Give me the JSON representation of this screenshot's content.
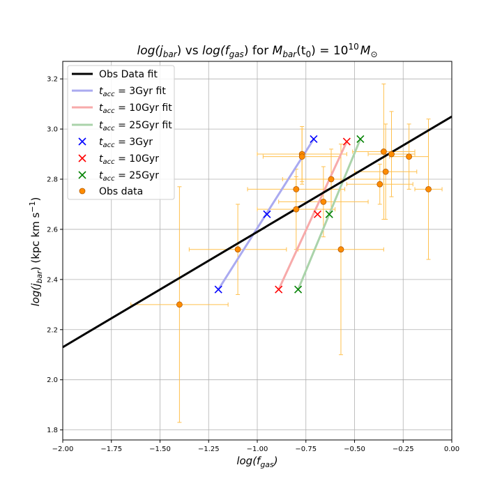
{
  "chart_data": {
    "type": "scatter",
    "title": "log(j_bar) vs log(f_gas) for M_bar(t0) = 10^10 M_sun",
    "title_parts": {
      "lhs": "log(j",
      "lhs_sub": "bar",
      "mid": ") vs ",
      "rhs": "log(f",
      "rhs_sub": "gas",
      "for": ") for ",
      "m": "M",
      "m_sub": "bar",
      "m_arg": "(t",
      "t_sub": "0",
      "eq": ") = 10",
      "exp": "10",
      "msun": "M",
      "msun_sub": "⊙"
    },
    "xlabel": "log(f_gas)",
    "xlabel_parts": {
      "main": "log(f",
      "sub": "gas",
      "end": ")"
    },
    "ylabel": "log(j_bar) (kpc km s^-1)",
    "ylabel_parts": {
      "main": "log(j",
      "sub": "bar",
      "end": ") (kpc km s",
      "sup": "−1",
      "close": ")"
    },
    "xlim": [
      -2.0,
      0.0
    ],
    "ylim": [
      1.76,
      3.27
    ],
    "xticks": [
      -2.0,
      -1.75,
      -1.5,
      -1.25,
      -1.0,
      -0.75,
      -0.5,
      -0.25,
      0.0
    ],
    "xtick_labels": [
      "−2.00",
      "−1.75",
      "−1.50",
      "−1.25",
      "−1.00",
      "−0.75",
      "−0.50",
      "−0.25",
      "0.00"
    ],
    "yticks": [
      1.8,
      2.0,
      2.2,
      2.4,
      2.6,
      2.8,
      3.0,
      3.2
    ],
    "ytick_labels": [
      "1.8",
      "2.0",
      "2.2",
      "2.4",
      "2.6",
      "2.8",
      "3.0",
      "3.2"
    ],
    "grid": true,
    "legend_position": "top-left",
    "fit_line": {
      "name": "Obs Data fit",
      "color": "#000000",
      "x": [
        -2.0,
        0.0
      ],
      "y": [
        2.13,
        3.05
      ]
    },
    "model_fits": [
      {
        "name": "t_acc = 3Gyr fit",
        "color": "#aaaaf0",
        "x": [
          -1.2,
          -0.71
        ],
        "y": [
          2.36,
          2.96
        ]
      },
      {
        "name": "t_acc = 10Gyr fit",
        "color": "#f7aaaa",
        "x": [
          -0.89,
          -0.54
        ],
        "y": [
          2.36,
          2.95
        ]
      },
      {
        "name": "t_acc = 25Gyr fit",
        "color": "#aad3aa",
        "x": [
          -0.79,
          -0.47
        ],
        "y": [
          2.36,
          2.96
        ]
      }
    ],
    "model_points": [
      {
        "name": "t_acc = 3Gyr",
        "color": "#0000ff",
        "x": [
          -1.2,
          -0.95,
          -0.71
        ],
        "y": [
          2.36,
          2.66,
          2.96
        ]
      },
      {
        "name": "t_acc = 10Gyr",
        "color": "#ff0000",
        "x": [
          -0.89,
          -0.69,
          -0.54
        ],
        "y": [
          2.36,
          2.66,
          2.95
        ]
      },
      {
        "name": "t_acc = 25Gyr",
        "color": "#008000",
        "x": [
          -0.79,
          -0.63,
          -0.47
        ],
        "y": [
          2.36,
          2.66,
          2.96
        ]
      }
    ],
    "obs_data": {
      "name": "Obs data",
      "color": "#ff8c00",
      "edge_color": "#b35a00",
      "errorbar_color": "#ffc04d",
      "points": [
        {
          "x": -1.4,
          "y": 2.3,
          "xerr": 0.25,
          "yerr": 0.47
        },
        {
          "x": -1.1,
          "y": 2.52,
          "xerr": 0.25,
          "yerr": 0.18
        },
        {
          "x": -0.8,
          "y": 2.76,
          "xerr": 0.25,
          "yerr": 0.05
        },
        {
          "x": -0.8,
          "y": 2.68,
          "xerr": 0.2,
          "yerr": 0.16
        },
        {
          "x": -0.77,
          "y": 2.9,
          "xerr": 0.23,
          "yerr": 0.11
        },
        {
          "x": -0.77,
          "y": 2.89,
          "xerr": 0.2,
          "yerr": 0.11
        },
        {
          "x": -0.66,
          "y": 2.71,
          "xerr": 0.23,
          "yerr": 0.14
        },
        {
          "x": -0.62,
          "y": 2.8,
          "xerr": 0.25,
          "yerr": 0.12
        },
        {
          "x": -0.57,
          "y": 2.52,
          "xerr": 0.22,
          "yerr": 0.42
        },
        {
          "x": -0.37,
          "y": 2.78,
          "xerr": 0.17,
          "yerr": 0.08
        },
        {
          "x": -0.35,
          "y": 2.91,
          "xerr": 0.16,
          "yerr": 0.27
        },
        {
          "x": -0.34,
          "y": 2.83,
          "xerr": 0.16,
          "yerr": 0.19
        },
        {
          "x": -0.31,
          "y": 2.9,
          "xerr": 0.12,
          "yerr": 0.17
        },
        {
          "x": -0.22,
          "y": 2.89,
          "xerr": 0.1,
          "yerr": 0.13
        },
        {
          "x": -0.12,
          "y": 2.76,
          "xerr": 0.07,
          "yerr": 0.28
        }
      ]
    },
    "legend": [
      {
        "kind": "line",
        "color": "#000000",
        "width": 3,
        "label": "Obs Data fit"
      },
      {
        "kind": "line",
        "color": "#aaaaf0",
        "width": 3,
        "label_main": "t",
        "label_sub": "acc",
        "label_rest": " = 3Gyr fit",
        "label": "t_acc = 3Gyr fit"
      },
      {
        "kind": "line",
        "color": "#f7aaaa",
        "width": 3,
        "label_main": "t",
        "label_sub": "acc",
        "label_rest": " = 10Gyr fit",
        "label": "t_acc = 10Gyr fit"
      },
      {
        "kind": "line",
        "color": "#aad3aa",
        "width": 3,
        "label_main": "t",
        "label_sub": "acc",
        "label_rest": " = 25Gyr fit",
        "label": "t_acc = 25Gyr fit"
      },
      {
        "kind": "cross",
        "color": "#0000ff",
        "label_main": "t",
        "label_sub": "acc",
        "label_rest": " = 3Gyr",
        "label": "t_acc = 3Gyr"
      },
      {
        "kind": "cross",
        "color": "#ff0000",
        "label_main": "t",
        "label_sub": "acc",
        "label_rest": " = 10Gyr",
        "label": "t_acc = 10Gyr"
      },
      {
        "kind": "cross",
        "color": "#008000",
        "label_main": "t",
        "label_sub": "acc",
        "label_rest": " = 25Gyr",
        "label": "t_acc = 25Gyr"
      },
      {
        "kind": "dot",
        "color": "#ff8c00",
        "label": "Obs data"
      }
    ]
  }
}
